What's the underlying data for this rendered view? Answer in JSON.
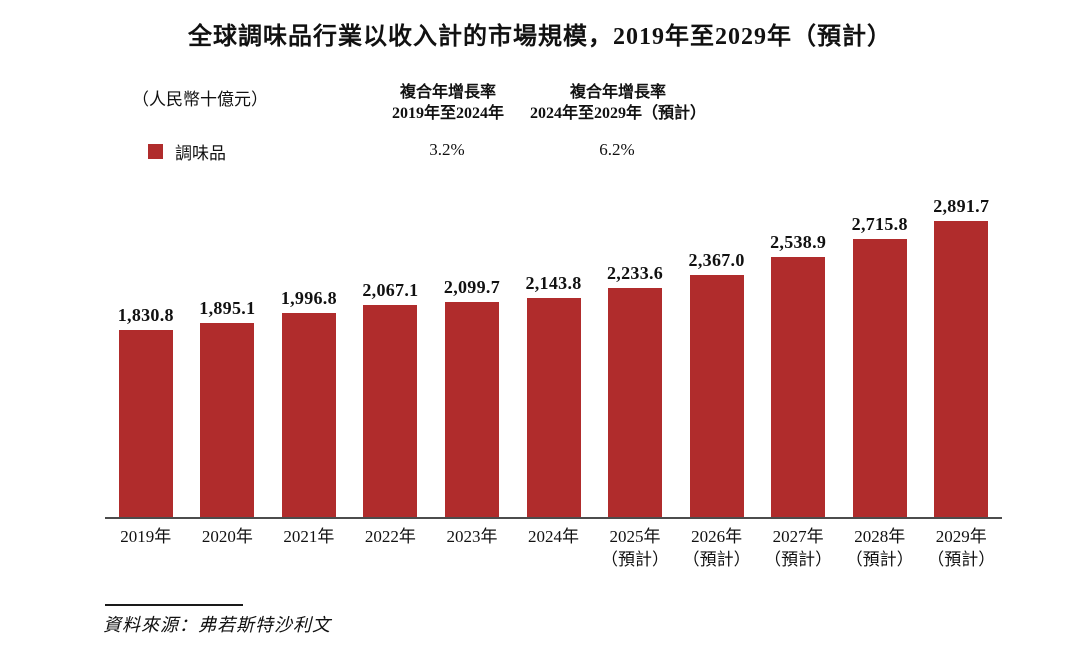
{
  "chart": {
    "title": "全球調味品行業以收入計的市場規模，2019年至2029年（預計）",
    "unit_label": "（人民幣十億元）",
    "legend_label": "調味品",
    "cagr_columns": [
      {
        "line1": "複合年增長率",
        "line2": "2019年至2024年",
        "value": "3.2%"
      },
      {
        "line1": "複合年增長率",
        "line2": "2024年至2029年（預計）",
        "value": "6.2%"
      }
    ],
    "source": "資料來源：弗若斯特沙利文",
    "colors": {
      "bar": "#B02C2C",
      "axis": "#4C4C4C",
      "text": "#111111"
    }
  },
  "chart_data": {
    "type": "bar",
    "title": "全球調味品行業以收入計的市場規模，2019年至2029年（預計）",
    "unit": "人民幣十億元",
    "series_name": "調味品",
    "categories": [
      "2019年",
      "2020年",
      "2021年",
      "2022年",
      "2023年",
      "2024年",
      "2025年（預計）",
      "2026年（預計）",
      "2027年（預計）",
      "2028年（預計）",
      "2029年（預計）"
    ],
    "values": [
      1830.8,
      1895.1,
      1996.8,
      2067.1,
      2099.7,
      2143.8,
      2233.6,
      2367.0,
      2538.9,
      2715.8,
      2891.7
    ],
    "value_labels": [
      "1,830.8",
      "1,895.1",
      "1,996.8",
      "2,067.1",
      "2,099.7",
      "2,143.8",
      "2,233.6",
      "2,367.0",
      "2,538.9",
      "2,715.8",
      "2,891.7"
    ],
    "annotations": [
      {
        "label": "複合年增長率 2019年至2024年",
        "value": "3.2%"
      },
      {
        "label": "複合年增長率 2024年至2029年（預計）",
        "value": "6.2%"
      }
    ],
    "xlabel": "",
    "ylabel": "人民幣十億元",
    "ylim": [
      0,
      3000
    ],
    "grid": false,
    "legend_position": "top-left",
    "bar_color": "#B02C2C",
    "source": "資料來源：弗若斯特沙利文"
  }
}
